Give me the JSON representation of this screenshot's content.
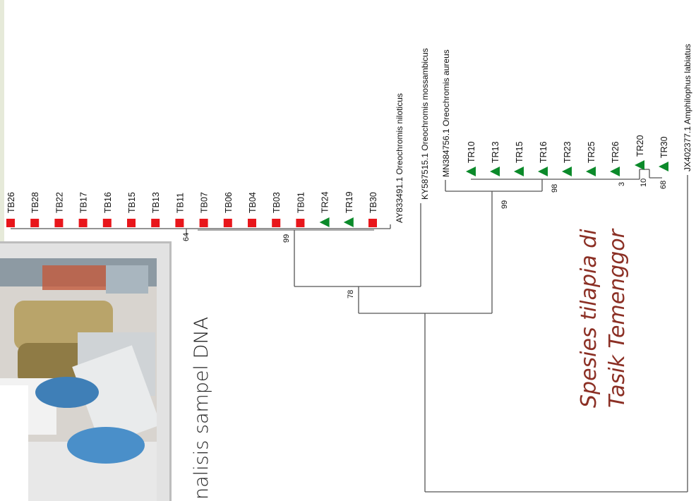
{
  "caption": "nalisis sampel DNA",
  "species_note": [
    "Spesies tilapia di",
    "Tasik Temenggor"
  ],
  "colors": {
    "tb_marker": "#e8161b",
    "tr_marker": "#0b8a2a",
    "branch": "#555555",
    "note": "#8b2f24"
  },
  "markers": {
    "TB": "square",
    "TR": "triangle"
  },
  "tb_group": [
    "TB26",
    "TB28",
    "TB22",
    "TB17",
    "TB16",
    "TB15",
    "TB13",
    "TB11",
    "TB07",
    "TB06",
    "TB04",
    "TB03",
    "TB01"
  ],
  "tb_group_tr": [
    "TR24",
    "TR19"
  ],
  "tb_group_end": "TB30",
  "tr_group": [
    "TR10",
    "TR13",
    "TR15",
    "TR16",
    "TR23",
    "TR25",
    "TR26",
    "TR20",
    "TR30"
  ],
  "references": {
    "niloticus": "AY833491.1 Oreochromis niloticus",
    "mossambicus": "KY587515.1 Oreochromis mossambicus",
    "aureus": "MN384756.1 Oreochromis aureus",
    "outgroup": "JX402377.1 Amphilophus labiatus"
  },
  "bootstrap": {
    "b64": "64",
    "b99a": "99",
    "b78": "78",
    "b99b": "99",
    "b98": "98",
    "b3": "3",
    "b10": "10",
    "b68": "68"
  }
}
